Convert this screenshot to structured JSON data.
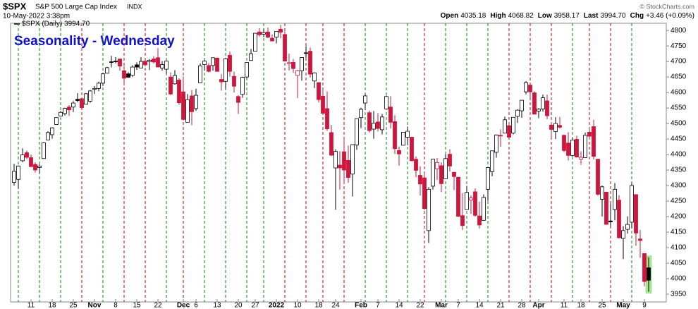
{
  "chart_data": {
    "type": "candlestick",
    "symbol": "$SPX",
    "name": "S&P 500 Large Cap Index",
    "exchange": "INDX",
    "timestamp": "10-May-2022 3:38pm",
    "quote": [
      {
        "label": "Open",
        "value": "4035.18"
      },
      {
        "label": "High",
        "value": "4068.82"
      },
      {
        "label": "Low",
        "value": "3958.17"
      },
      {
        "label": "Last",
        "value": "3994.70"
      },
      {
        "label": "Chg",
        "value": "+3.46 (+0.09%)"
      }
    ],
    "credit": "© StockCharts.com",
    "legend": "$SPX (Daily) 3994.70",
    "title": "Seasonality - Wednesday",
    "title_color": "#1010d0",
    "up_color": "#000000",
    "down_color": "#d2143c",
    "categories": [
      null,
      null,
      null,
      null,
      "11",
      null,
      null,
      null,
      null,
      "18",
      null,
      null,
      null,
      null,
      "25",
      null,
      null,
      null,
      null,
      "Nov",
      null,
      null,
      null,
      null,
      "8",
      null,
      null,
      null,
      null,
      "15",
      null,
      null,
      null,
      null,
      "22",
      null,
      null,
      null,
      null,
      null,
      "Dec",
      null,
      null,
      "6",
      null,
      null,
      null,
      null,
      "13",
      null,
      null,
      null,
      null,
      "20",
      null,
      null,
      null,
      "27",
      null,
      null,
      null,
      null,
      "2022",
      null,
      null,
      null,
      null,
      "10",
      null,
      null,
      null,
      null,
      "18",
      null,
      null,
      null,
      "24",
      null,
      null,
      null,
      null,
      null,
      "Feb",
      null,
      null,
      null,
      "7",
      null,
      null,
      null,
      null,
      "14",
      null,
      null,
      null,
      null,
      "22",
      null,
      null,
      null,
      null,
      "Mar",
      null,
      null,
      null,
      "7",
      null,
      null,
      null,
      null,
      "14",
      null,
      null,
      null,
      null,
      "21",
      null,
      null,
      null,
      null,
      "28",
      null,
      null,
      null,
      "Apr",
      null,
      null,
      null,
      null,
      null,
      "11",
      null,
      null,
      null,
      "18",
      null,
      null,
      null,
      null,
      "25",
      null,
      null,
      null,
      null,
      "May",
      null,
      null,
      null,
      null,
      "9",
      null
    ],
    "open": [
      4310,
      4320,
      4380,
      4406,
      4390,
      4368,
      4358,
      4387,
      4447,
      4464,
      4497,
      4524,
      4532,
      4553,
      4553,
      4578,
      4580,
      4562,
      4572,
      4610,
      4613,
      4630,
      4662,
      4699,
      4701,
      4708,
      4670,
      4660,
      4655,
      4689,
      4679,
      4701,
      4700,
      4708,
      4712,
      4679,
      4675,
      4650,
      4628,
      4640,
      4602,
      4504,
      4589,
      4548,
      4631,
      4690,
      4687,
      4687,
      4711,
      4642,
      4636,
      4720,
      4652,
      4587,
      4594,
      4650,
      4703,
      4733,
      4795,
      4788,
      4795,
      4775,
      4778,
      4804,
      4787,
      4693,
      4697,
      4655,
      4670,
      4728,
      4733,
      4637,
      4632,
      4588,
      4548,
      4471,
      4357,
      4366,
      4409,
      4381,
      4337,
      4431,
      4519,
      4566,
      4535,
      4482,
      4505,
      4480,
      4547,
      4553,
      4506,
      4413,
      4430,
      4456,
      4456,
      4385,
      4333,
      4325,
      4155,
      4298,
      4354,
      4364,
      4322,
      4401,
      4343,
      4327,
      4203,
      4223,
      4253,
      4280,
      4202,
      4188,
      4288,
      4345,
      4407,
      4462,
      4469,
      4493,
      4469,
      4523,
      4541,
      4602,
      4624,
      4599,
      4540,
      4547,
      4573,
      4495,
      4474,
      4494,
      4462,
      4437,
      4397,
      4449,
      4385,
      4390,
      4472,
      4490,
      4385,
      4256,
      4279,
      4186,
      4223,
      4253,
      4130,
      4159,
      4182,
      4271,
      4128,
      4081,
      4035
    ],
    "high": [
      4370,
      4365,
      4420,
      4413,
      4400,
      4375,
      4368,
      4440,
      4475,
      4488,
      4520,
      4540,
      4551,
      4559,
      4572,
      4598,
      4584,
      4598,
      4608,
      4621,
      4635,
      4664,
      4683,
      4718,
      4714,
      4708,
      4685,
      4665,
      4688,
      4697,
      4714,
      4701,
      4708,
      4717,
      4743,
      4701,
      4702,
      4665,
      4672,
      4646,
      4652,
      4595,
      4608,
      4612,
      4694,
      4705,
      4695,
      4713,
      4712,
      4660,
      4712,
      4732,
      4667,
      4591,
      4651,
      4698,
      4740,
      4791,
      4807,
      4805,
      4809,
      4787,
      4797,
      4818,
      4797,
      4725,
      4708,
      4673,
      4714,
      4749,
      4745,
      4665,
      4632,
      4611,
      4603,
      4495,
      4417,
      4411,
      4454,
      4429,
      4432,
      4516,
      4551,
      4595,
      4542,
      4540,
      4533,
      4531,
      4590,
      4588,
      4527,
      4426,
      4472,
      4490,
      4456,
      4394,
      4362,
      4340,
      4295,
      4386,
      4389,
      4375,
      4401,
      4417,
      4343,
      4327,
      4276,
      4299,
      4268,
      4291,
      4248,
      4272,
      4358,
      4412,
      4465,
      4481,
      4522,
      4501,
      4520,
      4546,
      4575,
      4637,
      4627,
      4604,
      4550,
      4593,
      4593,
      4504,
      4521,
      4521,
      4464,
      4472,
      4453,
      4461,
      4410,
      4471,
      4489,
      4512,
      4386,
      4300,
      4279,
      4241,
      4308,
      4269,
      4169,
      4201,
      4308,
      4271,
      4157,
      4082,
      4069
    ],
    "low": [
      4300,
      4290,
      4375,
      4385,
      4360,
      4342,
      4340,
      4387,
      4447,
      4451,
      4496,
      4524,
      4526,
      4524,
      4537,
      4569,
      4551,
      4562,
      4567,
      4595,
      4604,
      4621,
      4662,
      4681,
      4694,
      4670,
      4630,
      4648,
      4650,
      4673,
      4679,
      4684,
      4672,
      4694,
      4682,
      4670,
      4659,
      4592,
      4625,
      4560,
      4510,
      4504,
      4495,
      4541,
      4631,
      4670,
      4665,
      4670,
      4667,
      4606,
      4611,
      4651,
      4600,
      4531,
      4583,
      4644,
      4703,
      4733,
      4780,
      4778,
      4775,
      4765,
      4758,
      4775,
      4700,
      4671,
      4663,
      4582,
      4638,
      4712,
      4648,
      4614,
      4568,
      4530,
      4477,
      4395,
      4222,
      4287,
      4305,
      4309,
      4265,
      4415,
      4485,
      4544,
      4471,
      4451,
      4474,
      4465,
      4547,
      4484,
      4402,
      4364,
      4430,
      4430,
      4378,
      4327,
      4268,
      4221,
      4115,
      4287,
      4318,
      4279,
      4322,
      4345,
      4285,
      4199,
      4157,
      4223,
      4209,
      4200,
      4162,
      4187,
      4251,
      4330,
      4390,
      4425,
      4469,
      4454,
      4465,
      4502,
      4518,
      4594,
      4582,
      4530,
      4517,
      4538,
      4514,
      4451,
      4450,
      4484,
      4408,
      4381,
      4394,
      4392,
      4367,
      4390,
      4448,
      4384,
      4268,
      4200,
      4175,
      4168,
      4188,
      4129,
      4063,
      4145,
      4162,
      4106,
      4067,
      3976,
      3958
    ],
    "close": [
      4346,
      4363,
      4399,
      4391,
      4361,
      4350,
      4363,
      4438,
      4471,
      4486,
      4519,
      4536,
      4549,
      4544,
      4566,
      4574,
      4551,
      4596,
      4605,
      4613,
      4630,
      4660,
      4680,
      4697,
      4701,
      4685,
      4646,
      4649,
      4682,
      4682,
      4700,
      4689,
      4704,
      4698,
      4682,
      4690,
      4701,
      4595,
      4655,
      4567,
      4513,
      4577,
      4538,
      4591,
      4686,
      4701,
      4668,
      4712,
      4668,
      4634,
      4709,
      4668,
      4620,
      4568,
      4649,
      4697,
      4725,
      4791,
      4786,
      4793,
      4778,
      4766,
      4797,
      4794,
      4701,
      4696,
      4677,
      4670,
      4713,
      4726,
      4659,
      4663,
      4577,
      4533,
      4483,
      4398,
      4410,
      4357,
      4350,
      4326,
      4432,
      4516,
      4546,
      4589,
      4477,
      4501,
      4484,
      4521,
      4587,
      4504,
      4419,
      4402,
      4472,
      4475,
      4380,
      4349,
      4305,
      4226,
      4288,
      4385,
      4374,
      4306,
      4387,
      4363,
      4329,
      4201,
      4171,
      4278,
      4260,
      4204,
      4173,
      4262,
      4358,
      4412,
      4463,
      4461,
      4512,
      4456,
      4520,
      4543,
      4575,
      4632,
      4602,
      4530,
      4546,
      4583,
      4525,
      4481,
      4500,
      4488,
      4413,
      4397,
      4447,
      4392,
      4391,
      4462,
      4459,
      4394,
      4272,
      4296,
      4175,
      4183,
      4288,
      4132,
      4155,
      4175,
      4300,
      4147,
      4123,
      3991,
      3995
    ],
    "vline_colors": [
      null,
      "#080",
      null,
      null,
      null,
      null,
      "#080",
      null,
      null,
      null,
      null,
      "#080",
      null,
      null,
      null,
      null,
      "#c00",
      null,
      null,
      null,
      null,
      "#080",
      null,
      null,
      null,
      null,
      "#c00",
      null,
      null,
      null,
      null,
      "#c00",
      null,
      null,
      null,
      null,
      "#080",
      null,
      null,
      null,
      "#c00",
      null,
      null,
      null,
      null,
      "#080",
      null,
      null,
      null,
      null,
      "#080",
      null,
      null,
      null,
      null,
      "#080",
      null,
      null,
      null,
      "#080",
      null,
      null,
      null,
      null,
      "#c00",
      null,
      null,
      null,
      null,
      "#c00",
      null,
      null,
      null,
      "#c00",
      null,
      null,
      null,
      null,
      "#c00",
      null,
      null,
      null,
      null,
      "#080",
      null,
      null,
      null,
      null,
      "#080",
      null,
      null,
      null,
      null,
      "#080",
      null,
      null,
      null,
      "#c00",
      null,
      null,
      null,
      null,
      "#080",
      null,
      null,
      null,
      null,
      "#080",
      null,
      null,
      null,
      null,
      "#080",
      null,
      null,
      null,
      null,
      "#c00",
      null,
      null,
      null,
      null,
      "#c00",
      null,
      null,
      null,
      null,
      "#c00",
      null,
      null,
      null,
      null,
      "#080",
      null,
      null,
      null,
      "#c00",
      null,
      null,
      null,
      null,
      "#c00",
      null,
      null,
      null,
      null,
      "#080",
      null,
      null,
      null,
      null
    ],
    "ylim": [
      3925,
      4823
    ],
    "yticks": [
      3950,
      4000,
      4050,
      4100,
      4150,
      4200,
      4250,
      4300,
      4350,
      4400,
      4450,
      4500,
      4550,
      4600,
      4650,
      4700,
      4750,
      4800
    ]
  }
}
